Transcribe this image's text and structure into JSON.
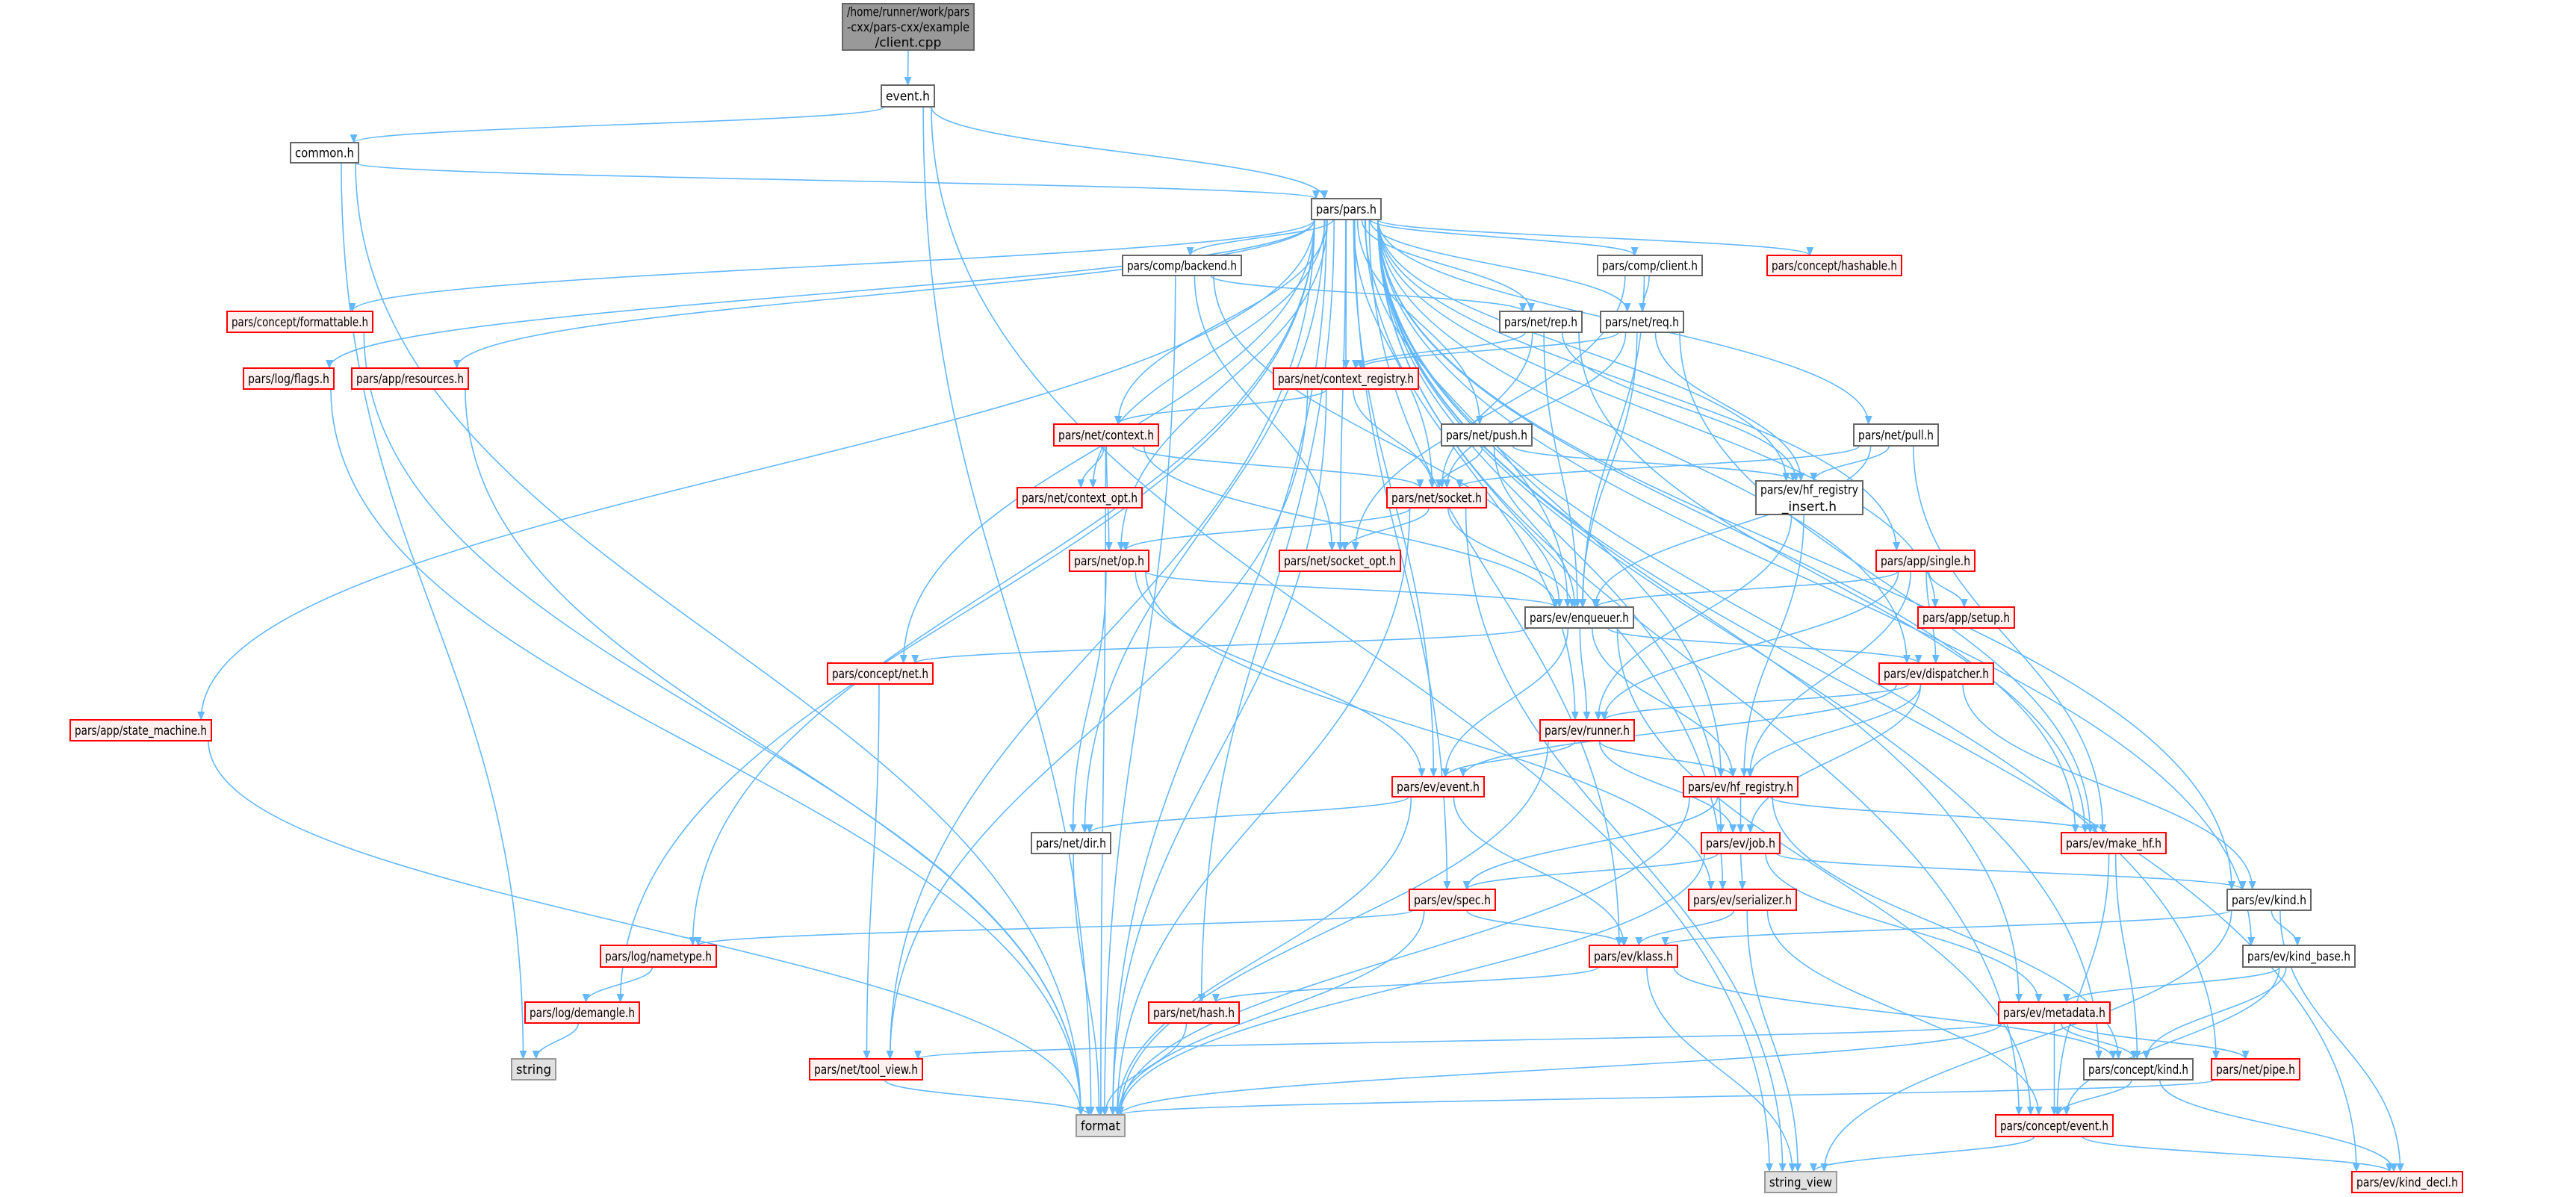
{
  "colors": {
    "edge": "#63b8ff",
    "root_fill": "#999999",
    "red_border": "#ff0000",
    "red_fill": "#fff0f0",
    "ext_fill": "#e0e0e0"
  },
  "nodes": [
    {
      "id": "root",
      "label": [
        "/home/runner/work/pars",
        "-cxx/pars-cxx/example",
        "/client.cpp"
      ],
      "kind": "root"
    },
    {
      "id": "event_h",
      "label": [
        "event.h"
      ],
      "kind": "plain"
    },
    {
      "id": "common_h",
      "label": [
        "common.h"
      ],
      "kind": "plain"
    },
    {
      "id": "pars_h",
      "label": [
        "pars/pars.h"
      ],
      "kind": "plain"
    },
    {
      "id": "backend",
      "label": [
        "pars/comp/backend.h"
      ],
      "kind": "plain"
    },
    {
      "id": "client",
      "label": [
        "pars/comp/client.h"
      ],
      "kind": "plain"
    },
    {
      "id": "hashable",
      "label": [
        "pars/concept/hashable.h"
      ],
      "kind": "red"
    },
    {
      "id": "formattable",
      "label": [
        "pars/concept/formattable.h"
      ],
      "kind": "red"
    },
    {
      "id": "rep",
      "label": [
        "pars/net/rep.h"
      ],
      "kind": "plain"
    },
    {
      "id": "req",
      "label": [
        "pars/net/req.h"
      ],
      "kind": "plain"
    },
    {
      "id": "flags",
      "label": [
        "pars/log/flags.h"
      ],
      "kind": "red"
    },
    {
      "id": "resources",
      "label": [
        "pars/app/resources.h"
      ],
      "kind": "red"
    },
    {
      "id": "ctx_registry",
      "label": [
        "pars/net/context_registry.h"
      ],
      "kind": "red"
    },
    {
      "id": "context",
      "label": [
        "pars/net/context.h"
      ],
      "kind": "red"
    },
    {
      "id": "push",
      "label": [
        "pars/net/push.h"
      ],
      "kind": "plain"
    },
    {
      "id": "pull",
      "label": [
        "pars/net/pull.h"
      ],
      "kind": "plain"
    },
    {
      "id": "ctx_opt",
      "label": [
        "pars/net/context_opt.h"
      ],
      "kind": "red"
    },
    {
      "id": "socket",
      "label": [
        "pars/net/socket.h"
      ],
      "kind": "red"
    },
    {
      "id": "hf_insert",
      "label": [
        "pars/ev/hf_registry",
        "_insert.h"
      ],
      "kind": "plain"
    },
    {
      "id": "op",
      "label": [
        "pars/net/op.h"
      ],
      "kind": "red"
    },
    {
      "id": "socket_opt",
      "label": [
        "pars/net/socket_opt.h"
      ],
      "kind": "red"
    },
    {
      "id": "single",
      "label": [
        "pars/app/single.h"
      ],
      "kind": "red"
    },
    {
      "id": "enqueuer",
      "label": [
        "pars/ev/enqueuer.h"
      ],
      "kind": "plain"
    },
    {
      "id": "setup",
      "label": [
        "pars/app/setup.h"
      ],
      "kind": "red"
    },
    {
      "id": "concept_net",
      "label": [
        "pars/concept/net.h"
      ],
      "kind": "red"
    },
    {
      "id": "dispatcher",
      "label": [
        "pars/ev/dispatcher.h"
      ],
      "kind": "red"
    },
    {
      "id": "state_machine",
      "label": [
        "pars/app/state_machine.h"
      ],
      "kind": "red"
    },
    {
      "id": "runner",
      "label": [
        "pars/ev/runner.h"
      ],
      "kind": "red"
    },
    {
      "id": "ev_event",
      "label": [
        "pars/ev/event.h"
      ],
      "kind": "red"
    },
    {
      "id": "hf_registry",
      "label": [
        "pars/ev/hf_registry.h"
      ],
      "kind": "red"
    },
    {
      "id": "dir",
      "label": [
        "pars/net/dir.h"
      ],
      "kind": "plain"
    },
    {
      "id": "job",
      "label": [
        "pars/ev/job.h"
      ],
      "kind": "red"
    },
    {
      "id": "make_hf",
      "label": [
        "pars/ev/make_hf.h"
      ],
      "kind": "red"
    },
    {
      "id": "spec",
      "label": [
        "pars/ev/spec.h"
      ],
      "kind": "red"
    },
    {
      "id": "serializer",
      "label": [
        "pars/ev/serializer.h"
      ],
      "kind": "red"
    },
    {
      "id": "kind",
      "label": [
        "pars/ev/kind.h"
      ],
      "kind": "plain"
    },
    {
      "id": "nametype",
      "label": [
        "pars/log/nametype.h"
      ],
      "kind": "red"
    },
    {
      "id": "klass",
      "label": [
        "pars/ev/klass.h"
      ],
      "kind": "red"
    },
    {
      "id": "kind_base",
      "label": [
        "pars/ev/kind_base.h"
      ],
      "kind": "plain"
    },
    {
      "id": "demangle",
      "label": [
        "pars/log/demangle.h"
      ],
      "kind": "red"
    },
    {
      "id": "hash",
      "label": [
        "pars/net/hash.h"
      ],
      "kind": "red"
    },
    {
      "id": "metadata",
      "label": [
        "pars/ev/metadata.h"
      ],
      "kind": "red"
    },
    {
      "id": "string",
      "label": [
        "string"
      ],
      "kind": "ext"
    },
    {
      "id": "tool_view",
      "label": [
        "pars/net/tool_view.h"
      ],
      "kind": "red"
    },
    {
      "id": "concept_kind",
      "label": [
        "pars/concept/kind.h"
      ],
      "kind": "plain"
    },
    {
      "id": "pipe",
      "label": [
        "pars/net/pipe.h"
      ],
      "kind": "red"
    },
    {
      "id": "format",
      "label": [
        "format"
      ],
      "kind": "ext"
    },
    {
      "id": "concept_event",
      "label": [
        "pars/concept/event.h"
      ],
      "kind": "red"
    },
    {
      "id": "string_view",
      "label": [
        "string_view"
      ],
      "kind": "ext"
    },
    {
      "id": "kind_decl",
      "label": [
        "pars/ev/kind_decl.h"
      ],
      "kind": "red"
    }
  ],
  "edges": [
    [
      "root",
      "event_h"
    ],
    [
      "event_h",
      "common_h"
    ],
    [
      "event_h",
      "pars_h"
    ],
    [
      "event_h",
      "format"
    ],
    [
      "event_h",
      "string_view"
    ],
    [
      "common_h",
      "pars_h"
    ],
    [
      "common_h",
      "format"
    ],
    [
      "common_h",
      "string"
    ],
    [
      "pars_h",
      "resources"
    ],
    [
      "pars_h",
      "setup"
    ],
    [
      "pars_h",
      "single"
    ],
    [
      "pars_h",
      "state_machine"
    ],
    [
      "pars_h",
      "backend"
    ],
    [
      "pars_h",
      "client"
    ],
    [
      "pars_h",
      "concept_event"
    ],
    [
      "pars_h",
      "formattable"
    ],
    [
      "pars_h",
      "hashable"
    ],
    [
      "pars_h",
      "concept_kind"
    ],
    [
      "pars_h",
      "concept_net"
    ],
    [
      "pars_h",
      "dispatcher"
    ],
    [
      "pars_h",
      "enqueuer"
    ],
    [
      "pars_h",
      "ev_event"
    ],
    [
      "pars_h",
      "hf_registry"
    ],
    [
      "pars_h",
      "hf_insert"
    ],
    [
      "pars_h",
      "job"
    ],
    [
      "pars_h",
      "kind"
    ],
    [
      "pars_h",
      "kind_base"
    ],
    [
      "pars_h",
      "kind_decl"
    ],
    [
      "pars_h",
      "klass"
    ],
    [
      "pars_h",
      "make_hf"
    ],
    [
      "pars_h",
      "metadata"
    ],
    [
      "pars_h",
      "runner"
    ],
    [
      "pars_h",
      "serializer"
    ],
    [
      "pars_h",
      "spec"
    ],
    [
      "pars_h",
      "demangle"
    ],
    [
      "pars_h",
      "flags"
    ],
    [
      "pars_h",
      "nametype"
    ],
    [
      "pars_h",
      "context"
    ],
    [
      "pars_h",
      "ctx_opt"
    ],
    [
      "pars_h",
      "ctx_registry"
    ],
    [
      "pars_h",
      "dir"
    ],
    [
      "pars_h",
      "hash"
    ],
    [
      "pars_h",
      "op"
    ],
    [
      "pars_h",
      "pipe"
    ],
    [
      "pars_h",
      "pull"
    ],
    [
      "pars_h",
      "push"
    ],
    [
      "pars_h",
      "rep"
    ],
    [
      "pars_h",
      "req"
    ],
    [
      "pars_h",
      "socket"
    ],
    [
      "pars_h",
      "socket_opt"
    ],
    [
      "pars_h",
      "tool_view"
    ],
    [
      "pars_h",
      "format"
    ],
    [
      "backend",
      "format"
    ],
    [
      "backend",
      "rep"
    ],
    [
      "backend",
      "enqueuer"
    ],
    [
      "backend",
      "socket_opt"
    ],
    [
      "client",
      "req"
    ],
    [
      "client",
      "enqueuer"
    ],
    [
      "client",
      "socket_opt"
    ],
    [
      "rep",
      "ctx_registry"
    ],
    [
      "rep",
      "socket"
    ],
    [
      "rep",
      "enqueuer"
    ],
    [
      "rep",
      "hf_insert"
    ],
    [
      "rep",
      "make_hf"
    ],
    [
      "req",
      "ctx_registry"
    ],
    [
      "req",
      "socket"
    ],
    [
      "req",
      "enqueuer"
    ],
    [
      "req",
      "hf_insert"
    ],
    [
      "req",
      "make_hf"
    ],
    [
      "ctx_registry",
      "context"
    ],
    [
      "ctx_registry",
      "socket"
    ],
    [
      "ctx_registry",
      "format"
    ],
    [
      "ctx_registry",
      "tool_view"
    ],
    [
      "context",
      "ctx_opt"
    ],
    [
      "context",
      "socket"
    ],
    [
      "context",
      "op"
    ],
    [
      "context",
      "enqueuer"
    ],
    [
      "context",
      "format"
    ],
    [
      "push",
      "socket"
    ],
    [
      "push",
      "enqueuer"
    ],
    [
      "push",
      "hf_insert"
    ],
    [
      "pull",
      "socket"
    ],
    [
      "pull",
      "enqueuer"
    ],
    [
      "pull",
      "hf_insert"
    ],
    [
      "pull",
      "make_hf"
    ],
    [
      "socket",
      "op"
    ],
    [
      "socket",
      "socket_opt"
    ],
    [
      "socket",
      "enqueuer"
    ],
    [
      "socket",
      "format"
    ],
    [
      "socket",
      "string_view"
    ],
    [
      "hf_insert",
      "runner"
    ],
    [
      "hf_insert",
      "hf_registry"
    ],
    [
      "op",
      "enqueuer"
    ],
    [
      "op",
      "ev_event"
    ],
    [
      "op",
      "dir"
    ],
    [
      "op",
      "serializer"
    ],
    [
      "single",
      "enqueuer"
    ],
    [
      "single",
      "setup"
    ],
    [
      "single",
      "dispatcher"
    ],
    [
      "single",
      "runner"
    ],
    [
      "single",
      "hf_registry"
    ],
    [
      "enqueuer",
      "concept_net"
    ],
    [
      "enqueuer",
      "dispatcher"
    ],
    [
      "enqueuer",
      "runner"
    ],
    [
      "enqueuer",
      "ev_event"
    ],
    [
      "enqueuer",
      "hf_registry"
    ],
    [
      "enqueuer",
      "concept_event"
    ],
    [
      "dispatcher",
      "runner"
    ],
    [
      "dispatcher",
      "ev_event"
    ],
    [
      "dispatcher",
      "hf_registry"
    ],
    [
      "dispatcher",
      "job"
    ],
    [
      "dispatcher",
      "kind"
    ],
    [
      "runner",
      "ev_event"
    ],
    [
      "runner",
      "hf_registry"
    ],
    [
      "runner",
      "job"
    ],
    [
      "runner",
      "format"
    ],
    [
      "ev_event",
      "dir"
    ],
    [
      "ev_event",
      "klass"
    ],
    [
      "ev_event",
      "format"
    ],
    [
      "hf_registry",
      "job"
    ],
    [
      "hf_registry",
      "make_hf"
    ],
    [
      "hf_registry",
      "spec"
    ],
    [
      "hf_registry",
      "concept_kind"
    ],
    [
      "hf_registry",
      "format"
    ],
    [
      "job",
      "spec"
    ],
    [
      "job",
      "serializer"
    ],
    [
      "job",
      "kind"
    ],
    [
      "job",
      "metadata"
    ],
    [
      "job",
      "format"
    ],
    [
      "make_hf",
      "concept_kind"
    ],
    [
      "make_hf",
      "concept_event"
    ],
    [
      "spec",
      "nametype"
    ],
    [
      "spec",
      "klass"
    ],
    [
      "spec",
      "format"
    ],
    [
      "serializer",
      "klass"
    ],
    [
      "serializer",
      "string_view"
    ],
    [
      "serializer",
      "concept_event"
    ],
    [
      "kind",
      "klass"
    ],
    [
      "kind",
      "kind_base"
    ],
    [
      "kind",
      "kind_decl"
    ],
    [
      "kind",
      "string_view"
    ],
    [
      "klass",
      "hash"
    ],
    [
      "klass",
      "concept_kind"
    ],
    [
      "klass",
      "string_view"
    ],
    [
      "kind_base",
      "metadata"
    ],
    [
      "kind_base",
      "concept_kind"
    ],
    [
      "kind_base",
      "concept_event"
    ],
    [
      "metadata",
      "tool_view"
    ],
    [
      "metadata",
      "concept_kind"
    ],
    [
      "metadata",
      "pipe"
    ],
    [
      "metadata",
      "concept_event"
    ],
    [
      "metadata",
      "format"
    ],
    [
      "concept_kind",
      "concept_event"
    ],
    [
      "concept_kind",
      "kind_decl"
    ],
    [
      "concept_event",
      "string_view"
    ],
    [
      "concept_event",
      "kind_decl"
    ],
    [
      "pipe",
      "format"
    ],
    [
      "concept_net",
      "tool_view"
    ],
    [
      "dir",
      "format"
    ],
    [
      "nametype",
      "demangle"
    ],
    [
      "demangle",
      "string"
    ],
    [
      "tool_view",
      "format"
    ],
    [
      "hash",
      "format"
    ],
    [
      "formattable",
      "format"
    ],
    [
      "flags",
      "format"
    ],
    [
      "resources",
      "format"
    ],
    [
      "state_machine",
      "format"
    ]
  ]
}
